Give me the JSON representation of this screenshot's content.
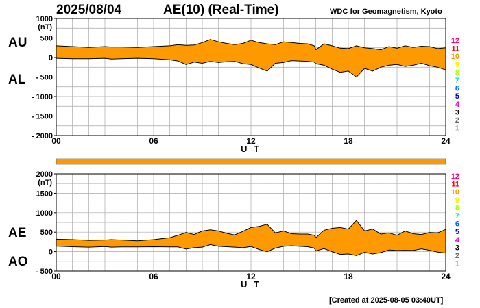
{
  "header": {
    "date": "2025/08/04",
    "title": "AE(10) (Real-Time)",
    "org": "WDC for Geomagnetism, Kyoto"
  },
  "footer": {
    "created": "[Created at 2025-08-05 03:40UT]"
  },
  "colors": {
    "fill": "#ff9900",
    "line": "#000000",
    "grid": "#a8a8a8"
  },
  "legend": {
    "labels": [
      "12",
      "11",
      "10",
      "9",
      "8",
      "7",
      "6",
      "5",
      "4",
      "3",
      "2",
      "1"
    ],
    "colors": [
      "#ff0077",
      "#ff0000",
      "#ff9900",
      "#ffee00",
      "#aaff00",
      "#00dddd",
      "#0066ff",
      "#0000cc",
      "#dd00dd",
      "#000000",
      "#666666",
      "#bbbbbb"
    ]
  },
  "chart_data": [
    {
      "type": "area",
      "title": "",
      "series_labels": [
        "AU",
        "AL"
      ],
      "unit_label": "(nT)",
      "xlabel": "U T",
      "x_ticks": [
        "00",
        "06",
        "12",
        "18",
        "24"
      ],
      "xlim": [
        0,
        24
      ],
      "ylim": [
        -2000,
        1000
      ],
      "y_ticks": [
        1000,
        500,
        0,
        -500,
        -1000,
        -1500,
        -2000
      ],
      "y_tick_labels": [
        "1000",
        "500",
        "0",
        "- 500",
        "- 1000",
        "- 1500",
        "- 2000"
      ],
      "hours": [
        0,
        1,
        2,
        3,
        3.4,
        4,
        5,
        6,
        7,
        7.5,
        8,
        8.5,
        9,
        9.5,
        10,
        10.5,
        11,
        11.5,
        12,
        12.5,
        13,
        13.5,
        14,
        14.5,
        15,
        15.5,
        15.9,
        16,
        16.5,
        17,
        17.5,
        18,
        18.5,
        19,
        19.5,
        20,
        20.5,
        21,
        21.5,
        22,
        22.5,
        23,
        23.5,
        24
      ],
      "series": [
        {
          "name": "AU",
          "values": [
            300,
            280,
            260,
            280,
            270,
            270,
            260,
            280,
            300,
            330,
            310,
            320,
            380,
            460,
            400,
            360,
            330,
            360,
            440,
            380,
            350,
            330,
            400,
            380,
            360,
            350,
            300,
            200,
            350,
            300,
            240,
            230,
            300,
            250,
            230,
            200,
            280,
            240,
            300,
            260,
            290,
            280,
            230,
            250
          ]
        },
        {
          "name": "AL",
          "values": [
            -20,
            -30,
            -30,
            -20,
            -40,
            -30,
            -20,
            -30,
            -60,
            -90,
            -180,
            -120,
            -150,
            -100,
            -130,
            -110,
            -100,
            -160,
            -180,
            -270,
            -350,
            -150,
            -130,
            -80,
            -90,
            -100,
            -120,
            -160,
            -200,
            -300,
            -380,
            -350,
            -500,
            -280,
            -350,
            -250,
            -200,
            -180,
            -230,
            -200,
            -150,
            -210,
            -250,
            -320
          ]
        }
      ]
    },
    {
      "type": "area",
      "title": "",
      "series_labels": [
        "AE",
        "AO"
      ],
      "unit_label": "(nT)",
      "xlabel": "U T",
      "x_ticks": [
        "00",
        "06",
        "12",
        "18",
        "24"
      ],
      "xlim": [
        0,
        24
      ],
      "ylim": [
        -500,
        2000
      ],
      "y_ticks": [
        2000,
        1500,
        1000,
        500,
        0,
        -500
      ],
      "y_tick_labels": [
        "2000",
        "1500",
        "1000",
        "500",
        "0",
        "- 500"
      ],
      "hours": [
        0,
        1,
        2,
        3,
        3.4,
        4,
        5,
        6,
        7,
        7.5,
        8,
        8.5,
        9,
        9.5,
        10,
        10.5,
        11,
        11.5,
        12,
        12.5,
        13,
        13.5,
        14,
        14.5,
        15,
        15.5,
        15.9,
        16,
        16.5,
        17,
        17.5,
        18,
        18.5,
        19,
        19.5,
        20,
        20.5,
        21,
        21.5,
        22,
        22.5,
        23,
        23.5,
        24
      ],
      "series": [
        {
          "name": "AE",
          "values": [
            320,
            310,
            290,
            300,
            310,
            300,
            280,
            310,
            360,
            420,
            490,
            440,
            530,
            560,
            530,
            470,
            430,
            520,
            620,
            650,
            700,
            480,
            530,
            460,
            450,
            450,
            420,
            360,
            550,
            600,
            620,
            580,
            800,
            530,
            580,
            450,
            480,
            420,
            530,
            460,
            440,
            490,
            480,
            570
          ]
        },
        {
          "name": "AO",
          "values": [
            140,
            125,
            115,
            130,
            115,
            120,
            120,
            125,
            120,
            120,
            65,
            100,
            115,
            180,
            135,
            125,
            115,
            100,
            130,
            55,
            0,
            90,
            135,
            150,
            135,
            125,
            90,
            20,
            75,
            0,
            -70,
            -60,
            -100,
            -15,
            -60,
            -25,
            40,
            30,
            35,
            30,
            70,
            35,
            -10,
            -35
          ]
        }
      ]
    }
  ]
}
